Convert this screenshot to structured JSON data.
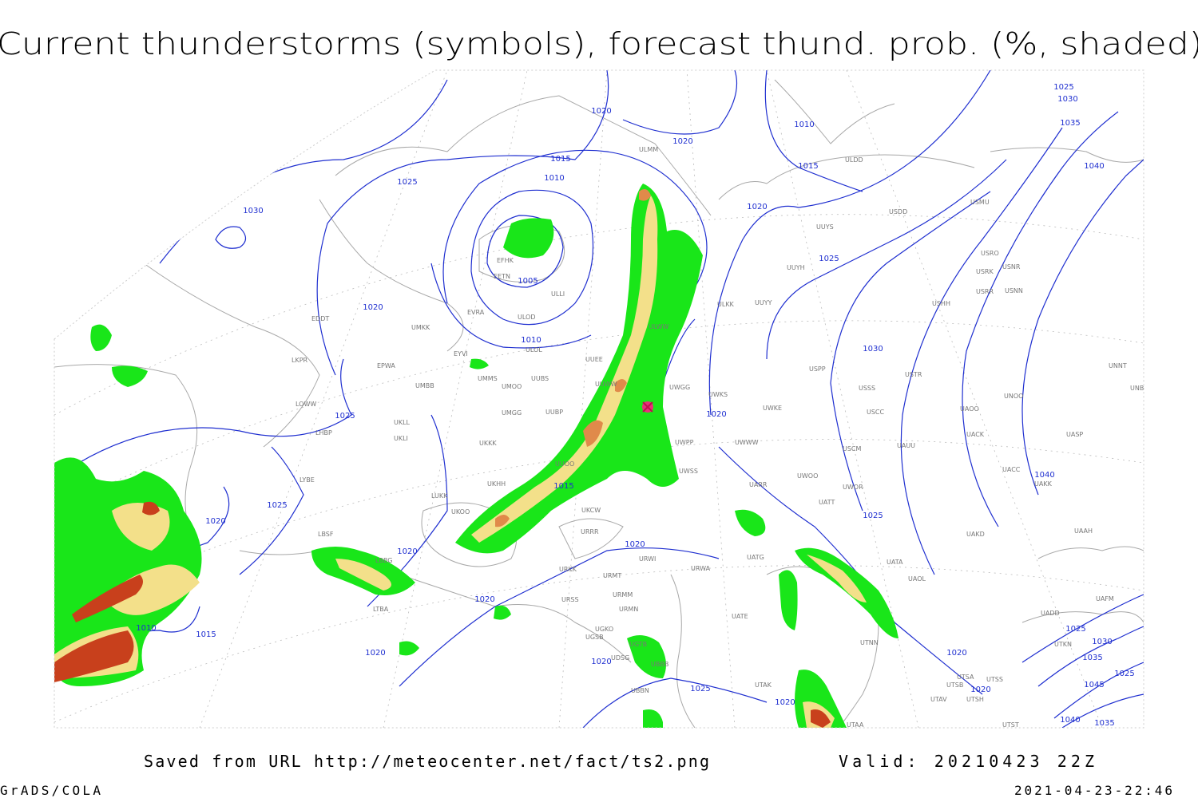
{
  "title": "Current thunderstorms (symbols), forecast thund. prob. (%, shaded)",
  "footer": {
    "saved": "Saved from URL http://meteocenter.net/fact/ts2.png",
    "valid": "Valid: 20210423 22Z",
    "producer": "GrADS/COLA",
    "timestamp": "2021-04-23-22:46"
  },
  "isobar_labels": [
    1030,
    1025,
    1020,
    1020,
    1015,
    1010,
    1005,
    1010,
    1020,
    1025,
    1025,
    1020,
    1020,
    1020,
    1020,
    1010,
    1015,
    1015,
    1020,
    1020,
    1025,
    1020,
    1020,
    1025,
    1015,
    1010,
    1030,
    1025,
    1020,
    1020,
    1020,
    1025,
    1030,
    1035,
    1040,
    1040,
    1025,
    1030,
    1035,
    1025,
    1045,
    1040,
    1035
  ],
  "station_labels": [
    "EFHK",
    "EETN",
    "EVRA",
    "ULOL",
    "ULOD",
    "ULLI",
    "EYVI",
    "EPWA",
    "UMMS",
    "UMOO",
    "UMBB",
    "UUBS",
    "UMKK",
    "EDDT",
    "LKPR",
    "LOWW",
    "LHBP",
    "UKLL",
    "UKLI",
    "UMGG",
    "UUBP",
    "UKKK",
    "LYBE",
    "LUKK",
    "UKOO",
    "UKHH",
    "LBSF",
    "LBBG",
    "LTBA",
    "UUEE",
    "UUWW",
    "UUOO",
    "UKCW",
    "URRR",
    "URWI",
    "URKK",
    "URMT",
    "URMM",
    "URSS",
    "URMN",
    "UGKO",
    "UGSB",
    "UGTB",
    "UDSG",
    "UBBB",
    "UBBN",
    "URWA",
    "UATG",
    "UATE",
    "UATT",
    "UARR",
    "UWOO",
    "UWOR",
    "UWSS",
    "UWPP",
    "UWWW",
    "UWKE",
    "UWKS",
    "UWGG",
    "ULWW",
    "ULKK",
    "UUYY",
    "UUYH",
    "UUYS",
    "ULDD",
    "ULMM",
    "USDD",
    "USMU",
    "USRO",
    "USRK",
    "USNR",
    "USRR",
    "USNN",
    "USHH",
    "USPP",
    "USTR",
    "USSS",
    "USCC",
    "USCM",
    "UAUU",
    "UACK",
    "UAOO",
    "UNOO",
    "UNNT",
    "UNBB",
    "UASP",
    "UACC",
    "UAKK",
    "UAKD",
    "UAAH",
    "UATA",
    "UAOL",
    "UADD",
    "UAFM",
    "UTNN",
    "UTSB",
    "UTSA",
    "UTAV",
    "UTSH",
    "UTSS",
    "UTAA",
    "UTST",
    "UTAK",
    "UTKN"
  ]
}
